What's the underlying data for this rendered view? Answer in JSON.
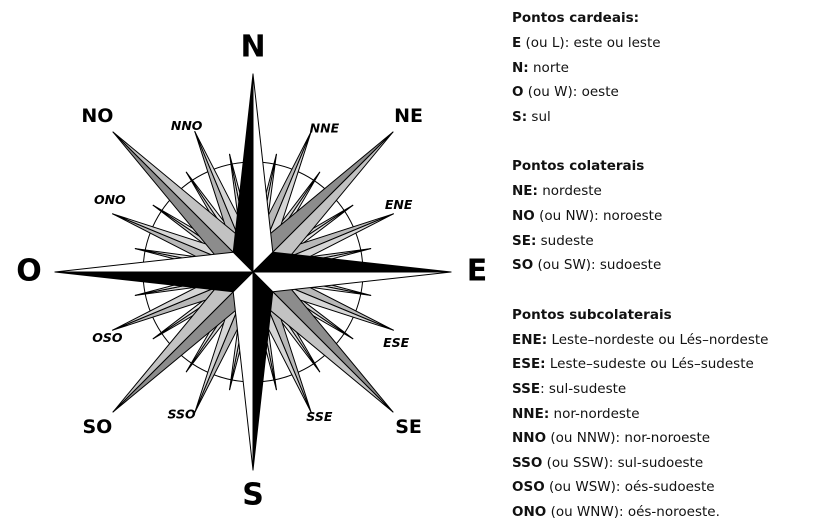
{
  "compass": {
    "cardinal": [
      "N",
      "E",
      "S",
      "O"
    ],
    "collateral": [
      "NE",
      "SE",
      "SO",
      "NO"
    ],
    "subcollateral": [
      "NNE",
      "ENE",
      "ESE",
      "SSE",
      "SSO",
      "OSO",
      "ONO",
      "NNO"
    ]
  },
  "legend": {
    "sections": [
      {
        "title": "Pontos cardeais:",
        "items": [
          {
            "term": "E",
            "text": "(ou L): este ou leste"
          },
          {
            "term": "N:",
            "text": "norte"
          },
          {
            "term": "O",
            "text": "(ou W): oeste"
          },
          {
            "term": "S:",
            "text": "sul"
          }
        ]
      },
      {
        "title": "Pontos colaterais",
        "items": [
          {
            "term": "NE:",
            "text": "nordeste"
          },
          {
            "term": "NO",
            "text": "(ou NW): noroeste"
          },
          {
            "term": "SE:",
            "text": "sudeste"
          },
          {
            "term": "SO",
            "text": "(ou SW): sudoeste"
          }
        ]
      },
      {
        "title": "Pontos subcolaterais",
        "items": [
          {
            "term": "ENE:",
            "text": "Leste–nordeste ou Lés–nordeste"
          },
          {
            "term": "ESE:",
            "text": "Leste–sudeste ou Lés–sudeste"
          },
          {
            "term": "SSE",
            "text": ": sul-sudeste"
          },
          {
            "term": "NNE:",
            "text": "nor-nordeste"
          },
          {
            "term": "NNO",
            "text": "(ou NNW): nor-noroeste"
          },
          {
            "term": "SSO",
            "text": "(ou SSW): sul-sudoeste"
          },
          {
            "term": "OSO",
            "text": "(ou WSW): oés-sudoeste"
          },
          {
            "term": "ONO",
            "text": "(ou WNW): oés-noroeste."
          }
        ]
      }
    ]
  }
}
